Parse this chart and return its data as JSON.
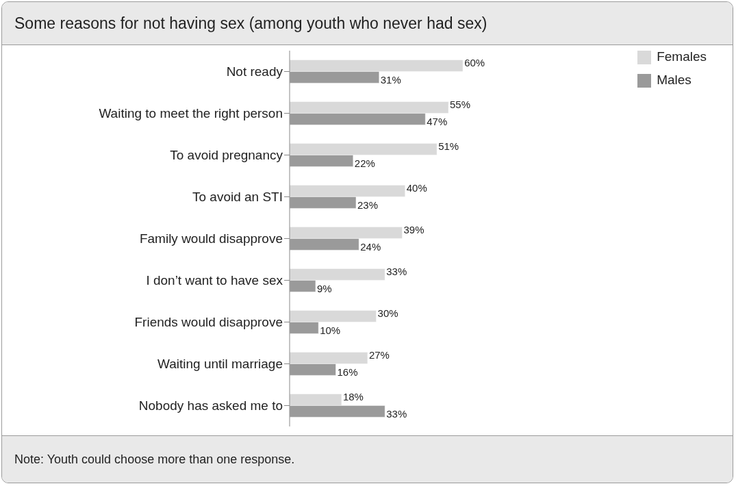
{
  "chart_data": {
    "type": "bar",
    "orientation": "horizontal",
    "title": "Some reasons for not having sex (among youth who never had sex)",
    "categories": [
      "Not ready",
      "Waiting to meet the right person",
      "To avoid pregnancy",
      "To avoid an STI",
      "Family would disapprove",
      "I don’t want to have sex",
      "Friends would disapprove",
      "Waiting until marriage",
      "Nobody has asked me to"
    ],
    "series": [
      {
        "name": "Females",
        "color": "#d9d9d9",
        "values": [
          60,
          55,
          51,
          40,
          39,
          33,
          30,
          27,
          18
        ],
        "value_labels": [
          "60%",
          "55%",
          "51%",
          "40%",
          "39%",
          "33%",
          "30%",
          "27%",
          "18%"
        ]
      },
      {
        "name": "Males",
        "color": "#9a9a9a",
        "values": [
          31,
          47,
          22,
          23,
          24,
          9,
          10,
          16,
          33
        ],
        "value_labels": [
          "31%",
          "47%",
          "22%",
          "23%",
          "24%",
          "9%",
          "10%",
          "16%",
          "33%"
        ]
      }
    ],
    "legend": "top right",
    "annotations": [
      "Note: Youth could choose more than one response."
    ]
  }
}
